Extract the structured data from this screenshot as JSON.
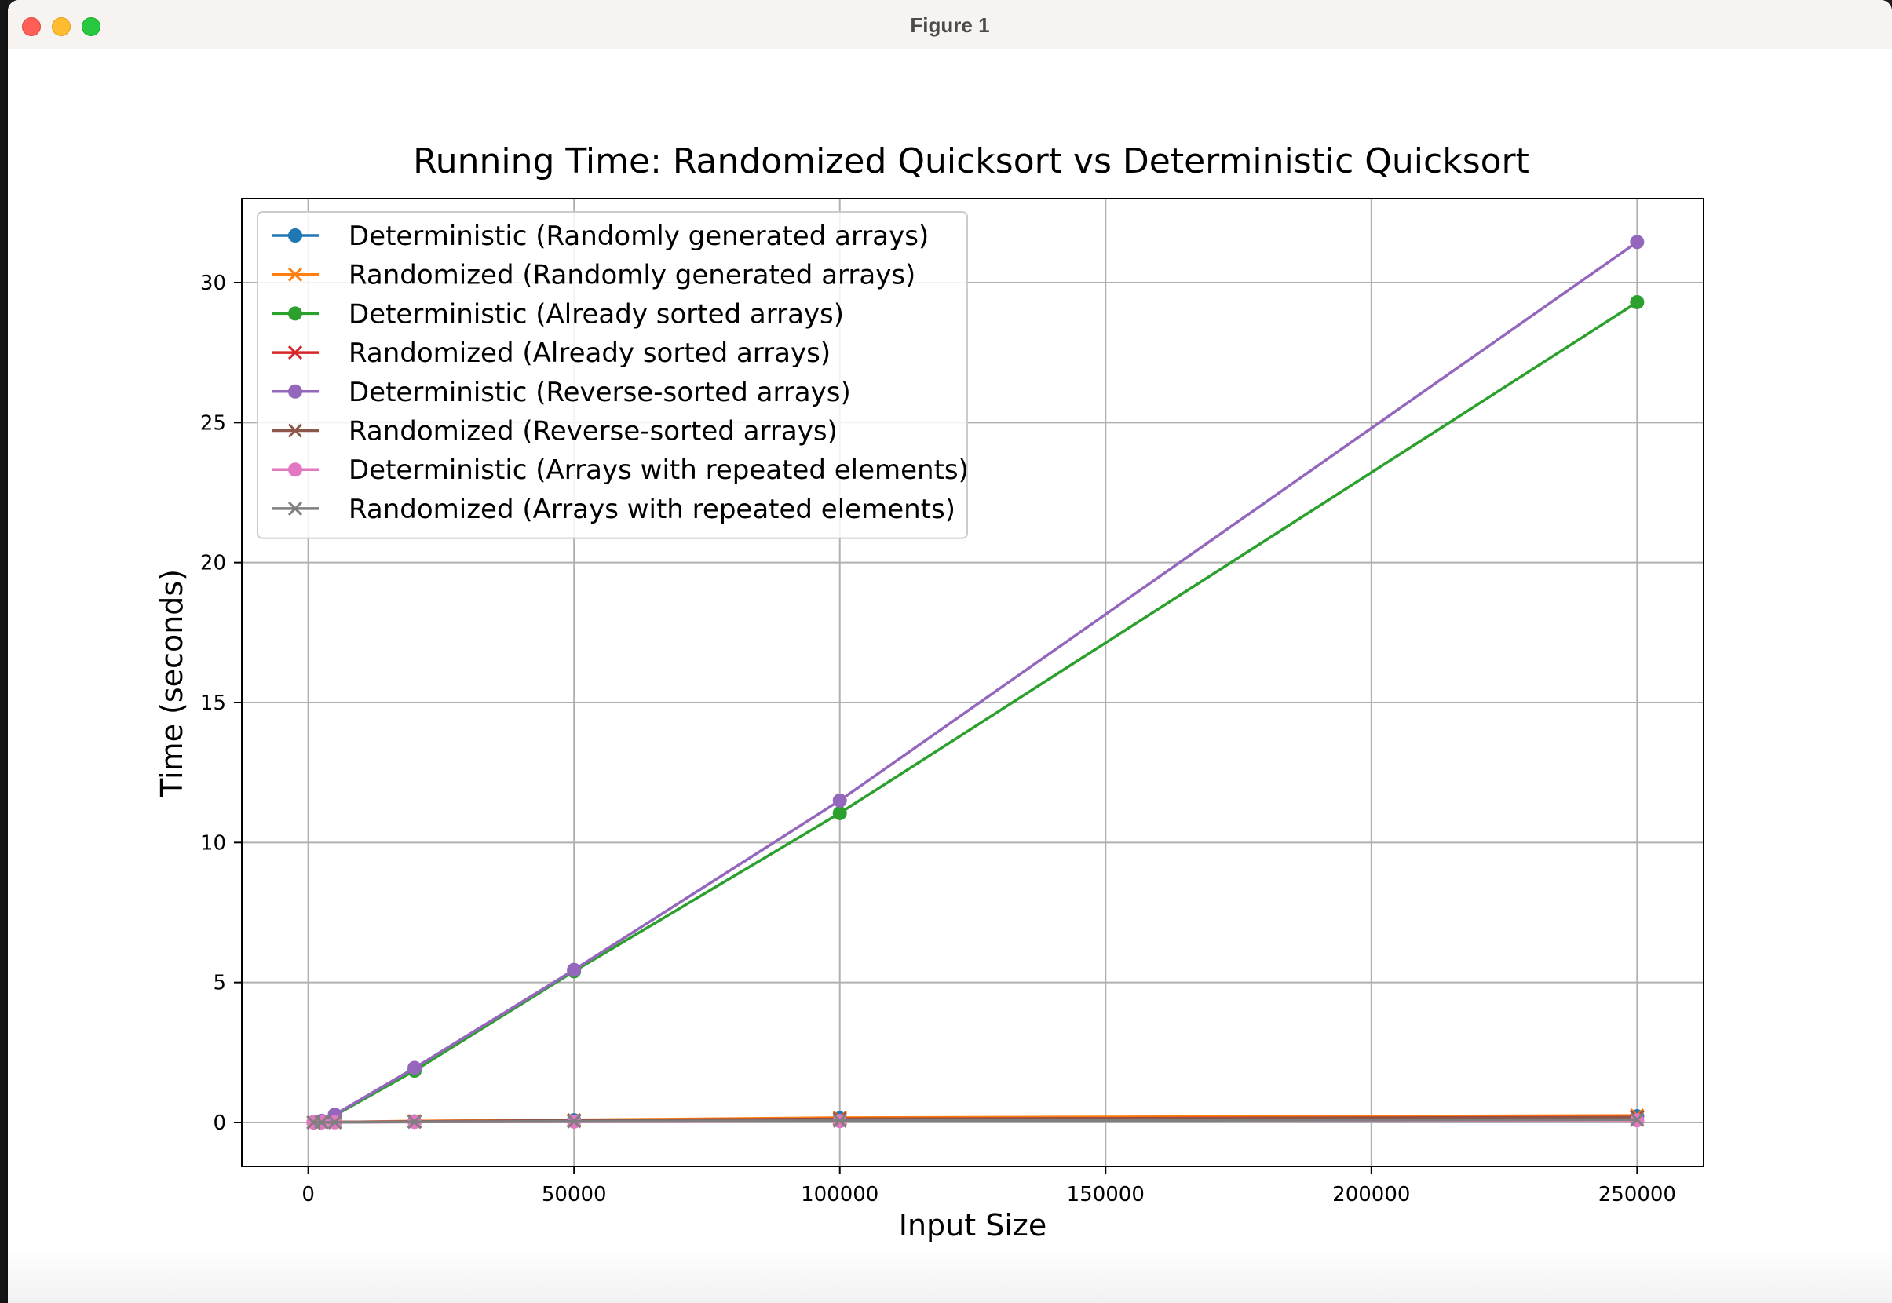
{
  "window": {
    "title": "Figure 1"
  },
  "chart_data": {
    "type": "line",
    "title": "Running Time: Randomized Quicksort vs Deterministic Quicksort",
    "xlabel": "Input Size",
    "ylabel": "Time (seconds)",
    "xlim": [
      -12500,
      262500
    ],
    "ylim": [
      -1.57,
      33.0
    ],
    "xticks": [
      0,
      50000,
      100000,
      150000,
      200000,
      250000
    ],
    "yticks": [
      0,
      5,
      10,
      15,
      20,
      25,
      30
    ],
    "grid": true,
    "legend_position": "upper-left",
    "series": [
      {
        "name": "Deterministic (Randomly generated arrays)",
        "color": "#1f77b4",
        "marker": "o",
        "x": [
          1000,
          2500,
          5000,
          20000,
          50000,
          100000,
          250000
        ],
        "y": [
          0.002,
          0.005,
          0.01,
          0.04,
          0.08,
          0.15,
          0.22
        ]
      },
      {
        "name": "Randomized (Randomly generated arrays)",
        "color": "#ff7f0e",
        "marker": "x",
        "x": [
          1000,
          2500,
          5000,
          20000,
          50000,
          100000,
          250000
        ],
        "y": [
          0.003,
          0.006,
          0.012,
          0.05,
          0.09,
          0.17,
          0.25
        ]
      },
      {
        "name": "Deterministic (Already sorted arrays)",
        "color": "#2ca02c",
        "marker": "o",
        "x": [
          1000,
          2500,
          5000,
          20000,
          50000,
          100000,
          250000
        ],
        "y": [
          0.01,
          0.05,
          0.25,
          1.85,
          5.4,
          11.05,
          29.3
        ]
      },
      {
        "name": "Randomized (Already sorted arrays)",
        "color": "#d62728",
        "marker": "x",
        "x": [
          1000,
          2500,
          5000,
          20000,
          50000,
          100000,
          250000
        ],
        "y": [
          0.002,
          0.005,
          0.01,
          0.03,
          0.07,
          0.13,
          0.19
        ]
      },
      {
        "name": "Deterministic (Reverse-sorted arrays)",
        "color": "#9467bd",
        "marker": "o",
        "x": [
          1000,
          2500,
          5000,
          20000,
          50000,
          100000,
          250000
        ],
        "y": [
          0.01,
          0.06,
          0.28,
          1.95,
          5.45,
          11.5,
          31.45
        ]
      },
      {
        "name": "Randomized (Reverse-sorted arrays)",
        "color": "#8c564b",
        "marker": "x",
        "x": [
          1000,
          2500,
          5000,
          20000,
          50000,
          100000,
          250000
        ],
        "y": [
          0.002,
          0.005,
          0.01,
          0.03,
          0.07,
          0.12,
          0.18
        ]
      },
      {
        "name": "Deterministic (Arrays with repeated elements)",
        "color": "#e377c2",
        "marker": "o",
        "x": [
          1000,
          2500,
          5000,
          20000,
          50000,
          100000,
          250000
        ],
        "y": [
          0.002,
          0.004,
          0.008,
          0.02,
          0.03,
          0.05,
          0.08
        ]
      },
      {
        "name": "Randomized (Arrays with repeated elements)",
        "color": "#7f7f7f",
        "marker": "x",
        "x": [
          1000,
          2500,
          5000,
          20000,
          50000,
          100000,
          250000
        ],
        "y": [
          0.002,
          0.004,
          0.008,
          0.02,
          0.04,
          0.06,
          0.1
        ]
      }
    ]
  }
}
